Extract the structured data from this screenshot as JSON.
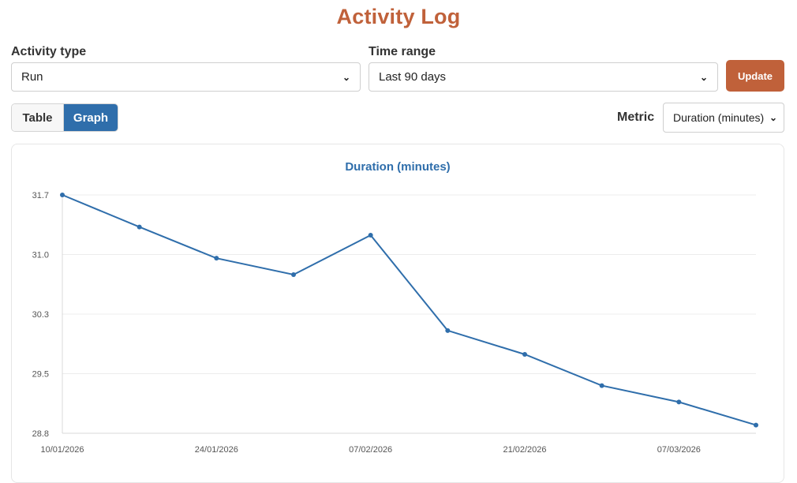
{
  "header": {
    "title": "Activity Log"
  },
  "filters": {
    "activity_label": "Activity type",
    "activity_value": "Run",
    "range_label": "Time range",
    "range_value": "Last 90 days",
    "update_label": "Update"
  },
  "view": {
    "table_label": "Table",
    "graph_label": "Graph",
    "active": "graph",
    "metric_label": "Metric",
    "metric_value": "Duration (minutes)"
  },
  "chart_data": {
    "type": "line",
    "title": "Duration (minutes)",
    "x": [
      "10/01/2026",
      "17/01/2026",
      "24/01/2026",
      "31/01/2026",
      "07/02/2026",
      "14/02/2026",
      "21/02/2026",
      "28/02/2026",
      "07/03/2026",
      "14/03/2026"
    ],
    "x_tick_labels": [
      "10/01/2026",
      "24/01/2026",
      "07/02/2026",
      "21/02/2026",
      "07/03/2026"
    ],
    "series": [
      {
        "values": [
          31.7,
          31.31,
          30.93,
          30.73,
          31.21,
          30.05,
          29.76,
          29.38,
          29.18,
          28.9
        ]
      }
    ],
    "y_ticks": [
      "28.8",
      "29.5",
      "30.3",
      "31.0",
      "31.7"
    ],
    "ylim": [
      28.8,
      31.7
    ],
    "grid": true,
    "color": "#2f6eab"
  }
}
